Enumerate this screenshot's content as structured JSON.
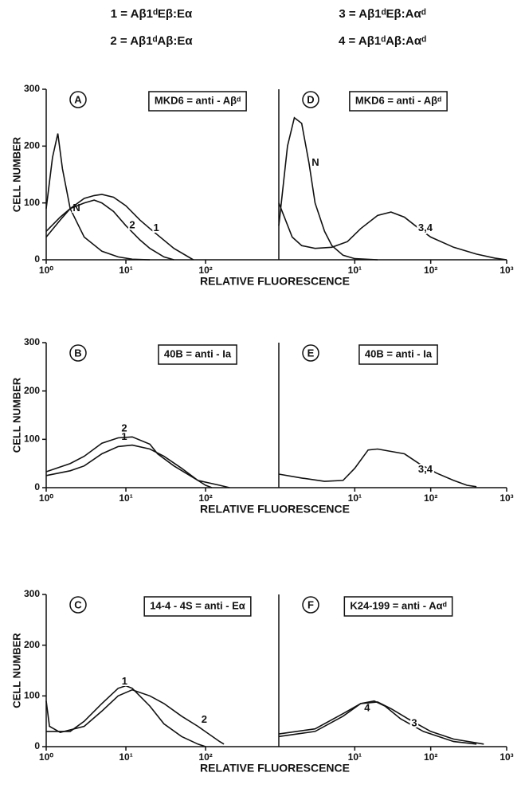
{
  "header": [
    "1 = Aβ1ᵈEβ:Eα",
    "2 = Aβ1ᵈAβ:Eα",
    "3 = Aβ1ᵈEβ:Aαᵈ",
    "4 = Aβ1ᵈAβ:Aαᵈ"
  ],
  "chart_data": [
    {
      "type": "line",
      "panel": "A",
      "title": "MKD6 = anti - Aβᵈ",
      "xlabel": "RELATIVE FLUORESCENCE",
      "ylabel": "CELL NUMBER",
      "log_x": true,
      "xlim": [
        1,
        830
      ],
      "ylim": [
        0,
        300
      ],
      "yticks": [
        0,
        100,
        200,
        300
      ],
      "xticks": [
        {
          "value": 1,
          "label": "10⁰"
        },
        {
          "value": 10,
          "label": "10¹"
        },
        {
          "value": 100,
          "label": "10²"
        }
      ],
      "series": [
        {
          "name": "N",
          "color": "#111111",
          "x": [
            1,
            1.2,
            1.4,
            1.6,
            2,
            3,
            5,
            8,
            12,
            20
          ],
          "values": [
            90,
            180,
            222,
            160,
            90,
            40,
            15,
            5,
            1,
            0
          ]
        },
        {
          "name": "2",
          "color": "#111111",
          "x": [
            1,
            1.5,
            2,
            3,
            4,
            5,
            7,
            10,
            15,
            20,
            30,
            40
          ],
          "values": [
            50,
            75,
            90,
            100,
            105,
            100,
            85,
            60,
            35,
            20,
            5,
            0
          ]
        },
        {
          "name": "1",
          "color": "#111111",
          "x": [
            1,
            1.5,
            2,
            3,
            4,
            5,
            7,
            10,
            15,
            20,
            40,
            70
          ],
          "values": [
            40,
            70,
            90,
            108,
            113,
            115,
            110,
            95,
            70,
            55,
            20,
            0
          ]
        }
      ]
    },
    {
      "type": "line",
      "panel": "D",
      "title": "MKD6 = anti - Aβᵈ",
      "log_x": true,
      "xlim": [
        1,
        1000
      ],
      "ylim": [
        0,
        300
      ],
      "xticks": [
        {
          "value": 10,
          "label": "10¹"
        },
        {
          "value": 100,
          "label": "10²"
        },
        {
          "value": 1000,
          "label": "10³"
        }
      ],
      "series": [
        {
          "name": "N",
          "color": "#111111",
          "x": [
            1,
            1.3,
            1.6,
            2,
            2.5,
            3,
            4,
            5,
            7,
            10,
            20
          ],
          "values": [
            60,
            200,
            250,
            240,
            170,
            100,
            50,
            25,
            8,
            2,
            0
          ]
        },
        {
          "name": "3,4",
          "color": "#111111",
          "x": [
            1,
            1.5,
            2,
            3,
            5,
            8,
            12,
            20,
            30,
            45,
            70,
            100,
            200,
            400,
            700,
            1000
          ],
          "values": [
            100,
            40,
            25,
            20,
            22,
            32,
            55,
            78,
            84,
            75,
            55,
            40,
            22,
            10,
            3,
            0
          ]
        }
      ]
    },
    {
      "type": "line",
      "panel": "B",
      "title": "40B = anti - Ia",
      "xlabel": "RELATIVE FLUORESCENCE",
      "ylabel": "CELL NUMBER",
      "log_x": true,
      "xlim": [
        1,
        830
      ],
      "ylim": [
        0,
        300
      ],
      "yticks": [
        0,
        100,
        200,
        300
      ],
      "xticks": [
        {
          "value": 1,
          "label": "10⁰"
        },
        {
          "value": 10,
          "label": "10¹"
        },
        {
          "value": 100,
          "label": "10²"
        }
      ],
      "series": [
        {
          "name": "1",
          "color": "#111111",
          "x": [
            1,
            2,
            3,
            5,
            8,
            12,
            20,
            30,
            50,
            80,
            100,
            120
          ],
          "values": [
            25,
            35,
            45,
            70,
            85,
            88,
            80,
            65,
            40,
            15,
            5,
            0
          ]
        },
        {
          "name": "2",
          "color": "#111111",
          "x": [
            1,
            2,
            3,
            5,
            8,
            12,
            20,
            25,
            40,
            80,
            150,
            200
          ],
          "values": [
            33,
            50,
            65,
            92,
            103,
            105,
            90,
            70,
            45,
            15,
            5,
            0
          ]
        }
      ]
    },
    {
      "type": "line",
      "panel": "E",
      "title": "40B = anti - Ia",
      "log_x": true,
      "xlim": [
        1,
        1000
      ],
      "ylim": [
        0,
        300
      ],
      "xticks": [
        {
          "value": 10,
          "label": "10¹"
        },
        {
          "value": 100,
          "label": "10²"
        },
        {
          "value": 1000,
          "label": "10³"
        }
      ],
      "series": [
        {
          "name": "3,4",
          "color": "#111111",
          "x": [
            1,
            2,
            4,
            7,
            10,
            15,
            20,
            30,
            45,
            70,
            120,
            200,
            300,
            400
          ],
          "values": [
            28,
            20,
            13,
            15,
            40,
            78,
            80,
            75,
            70,
            50,
            30,
            15,
            5,
            2
          ]
        }
      ]
    },
    {
      "type": "line",
      "panel": "C",
      "title": "14-4 - 4S = anti - Eα",
      "xlabel": "RELATIVE FLUORESCENCE",
      "ylabel": "CELL NUMBER",
      "log_x": true,
      "xlim": [
        1,
        830
      ],
      "ylim": [
        0,
        300
      ],
      "yticks": [
        0,
        100,
        200,
        300
      ],
      "xticks": [
        {
          "value": 1,
          "label": "10⁰"
        },
        {
          "value": 10,
          "label": "10¹"
        },
        {
          "value": 100,
          "label": "10²"
        }
      ],
      "series": [
        {
          "name": "1",
          "color": "#111111",
          "x": [
            1,
            2,
            3,
            5,
            8,
            10,
            12,
            20,
            30,
            50,
            80,
            100
          ],
          "values": [
            30,
            30,
            50,
            85,
            115,
            120,
            115,
            80,
            45,
            20,
            5,
            0
          ]
        },
        {
          "name": "2",
          "color": "#111111",
          "x": [
            1,
            1.1,
            1.5,
            3,
            5,
            8,
            12,
            20,
            30,
            50,
            80,
            150,
            170
          ],
          "values": [
            90,
            40,
            28,
            40,
            70,
            100,
            112,
            100,
            85,
            60,
            40,
            10,
            5
          ]
        }
      ]
    },
    {
      "type": "line",
      "panel": "F",
      "title": "K24-199 = anti - Aαᵈ",
      "log_x": true,
      "xlim": [
        1,
        1000
      ],
      "ylim": [
        0,
        300
      ],
      "xticks": [
        {
          "value": 10,
          "label": "10¹"
        },
        {
          "value": 100,
          "label": "10²"
        },
        {
          "value": 1000,
          "label": "10³"
        }
      ],
      "series": [
        {
          "name": "4",
          "color": "#111111",
          "x": [
            1,
            3,
            7,
            12,
            18,
            25,
            40,
            80,
            200,
            400
          ],
          "values": [
            25,
            35,
            65,
            85,
            90,
            80,
            55,
            30,
            10,
            5
          ]
        },
        {
          "name": "3",
          "color": "#111111",
          "x": [
            1,
            3,
            7,
            12,
            20,
            30,
            50,
            100,
            200,
            500
          ],
          "values": [
            20,
            30,
            60,
            85,
            88,
            75,
            55,
            30,
            15,
            5
          ]
        }
      ]
    }
  ]
}
